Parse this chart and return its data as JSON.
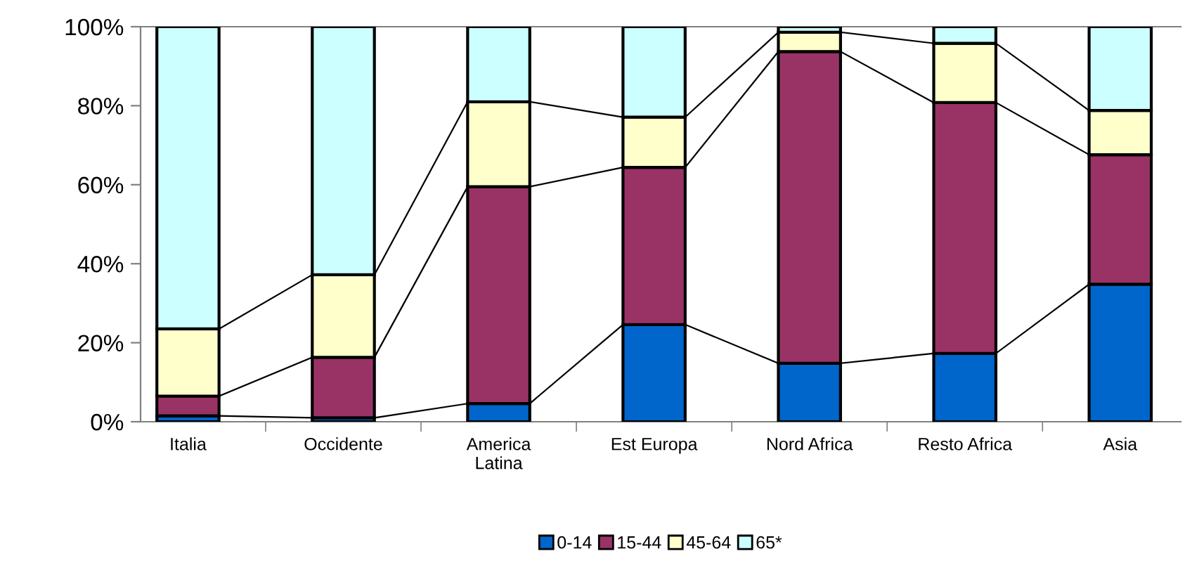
{
  "chart_data": {
    "type": "bar",
    "stacked": true,
    "categories": [
      "Italia",
      "Occidente",
      "America\nLatina",
      "Est Europa",
      "Nord Africa",
      "Resto Africa",
      "Asia"
    ],
    "series": [
      {
        "name": "0-14",
        "color": "#0066cc",
        "values": [
          1.5,
          1.0,
          4.6,
          24.6,
          14.8,
          17.3,
          34.8
        ]
      },
      {
        "name": "15-44",
        "color": "#993366",
        "values": [
          5.0,
          15.3,
          54.9,
          39.8,
          78.9,
          63.5,
          32.8
        ]
      },
      {
        "name": "45-64",
        "color": "#ffffcc",
        "values": [
          17.0,
          20.9,
          21.5,
          12.7,
          4.9,
          15.0,
          11.2
        ]
      },
      {
        "name": "65*",
        "color": "#ccffff",
        "values": [
          76.5,
          62.8,
          19.0,
          22.9,
          1.4,
          4.2,
          21.2
        ]
      }
    ],
    "ylim": [
      0,
      100
    ],
    "yticks": [
      {
        "value": 0,
        "label": "0%"
      },
      {
        "value": 20,
        "label": "20%"
      },
      {
        "value": 40,
        "label": "40%"
      },
      {
        "value": 60,
        "label": "60%"
      },
      {
        "value": 80,
        "label": "80%"
      },
      {
        "value": 100,
        "label": "100%"
      }
    ],
    "grid": false,
    "legend": "bottom"
  }
}
